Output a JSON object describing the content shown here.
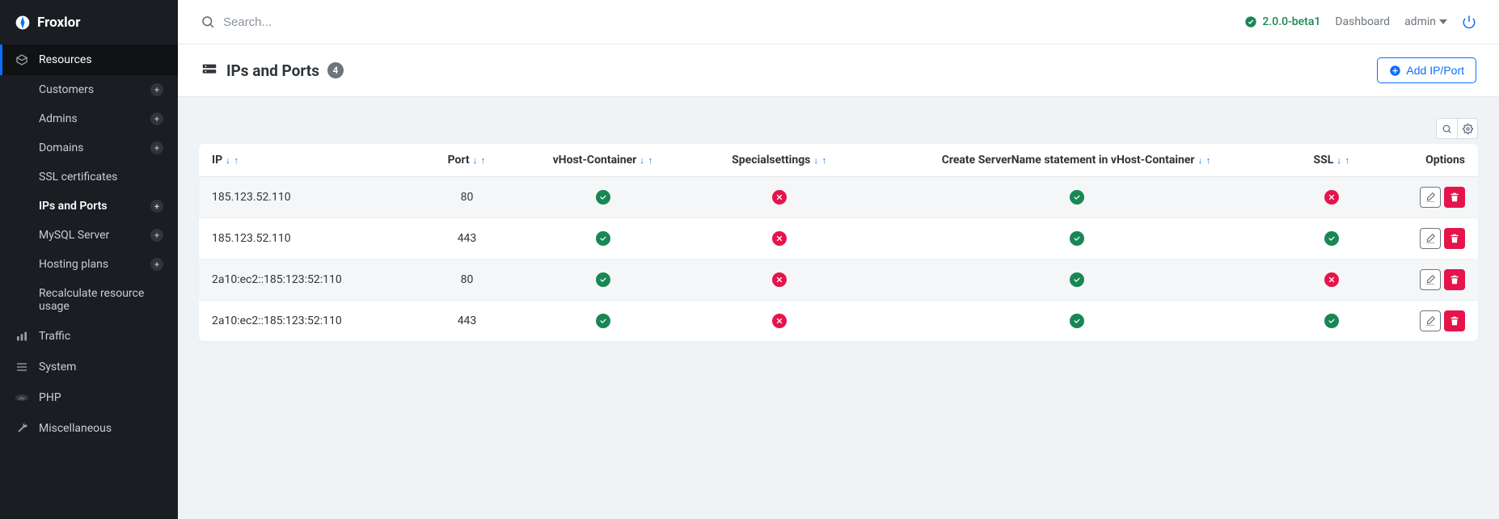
{
  "brand": {
    "name": "Froxlor"
  },
  "colors": {
    "primary": "#0d6efd",
    "success": "#198754",
    "danger": "#e5154b",
    "sidebar_bg": "#1a1d21",
    "body_bg": "#f0f3f5",
    "text": "#2f353a",
    "muted": "#6c757d"
  },
  "topbar": {
    "search_placeholder": "Search...",
    "version": "2.0.0-beta1",
    "dashboard_label": "Dashboard",
    "user_label": "admin"
  },
  "sidebar": {
    "sections": [
      {
        "label": "Resources",
        "icon": "box"
      },
      {
        "label": "Traffic",
        "icon": "chart"
      },
      {
        "label": "System",
        "icon": "bars"
      },
      {
        "label": "PHP",
        "icon": "php"
      },
      {
        "label": "Miscellaneous",
        "icon": "wrench"
      }
    ],
    "resource_items": [
      {
        "label": "Customers",
        "has_plus": true,
        "active": false
      },
      {
        "label": "Admins",
        "has_plus": true,
        "active": false
      },
      {
        "label": "Domains",
        "has_plus": true,
        "active": false
      },
      {
        "label": "SSL certificates",
        "has_plus": false,
        "active": false
      },
      {
        "label": "IPs and Ports",
        "has_plus": true,
        "active": true
      },
      {
        "label": "MySQL Server",
        "has_plus": true,
        "active": false
      },
      {
        "label": "Hosting plans",
        "has_plus": true,
        "active": false
      },
      {
        "label": "Recalculate resource usage",
        "has_plus": false,
        "active": false
      }
    ]
  },
  "page": {
    "title": "IPs and Ports",
    "count": "4",
    "add_button": "Add IP/Port"
  },
  "table": {
    "columns": [
      {
        "label": "IP",
        "align": "left",
        "sortable": true
      },
      {
        "label": "Port",
        "align": "center",
        "sortable": true
      },
      {
        "label": "vHost-Container",
        "align": "center",
        "sortable": true
      },
      {
        "label": "Specialsettings",
        "align": "center",
        "sortable": true
      },
      {
        "label": "Create ServerName statement in vHost-Container",
        "align": "center",
        "sortable": true
      },
      {
        "label": "SSL",
        "align": "center",
        "sortable": true
      },
      {
        "label": "Options",
        "align": "right",
        "sortable": false
      }
    ],
    "rows": [
      {
        "ip": "185.123.52.110",
        "port": "80",
        "vhost": true,
        "special": false,
        "servername": true,
        "ssl": false
      },
      {
        "ip": "185.123.52.110",
        "port": "443",
        "vhost": true,
        "special": false,
        "servername": true,
        "ssl": true
      },
      {
        "ip": "2a10:ec2::185:123:52:110",
        "port": "80",
        "vhost": true,
        "special": false,
        "servername": true,
        "ssl": false
      },
      {
        "ip": "2a10:ec2::185:123:52:110",
        "port": "443",
        "vhost": true,
        "special": false,
        "servername": true,
        "ssl": true
      }
    ]
  }
}
